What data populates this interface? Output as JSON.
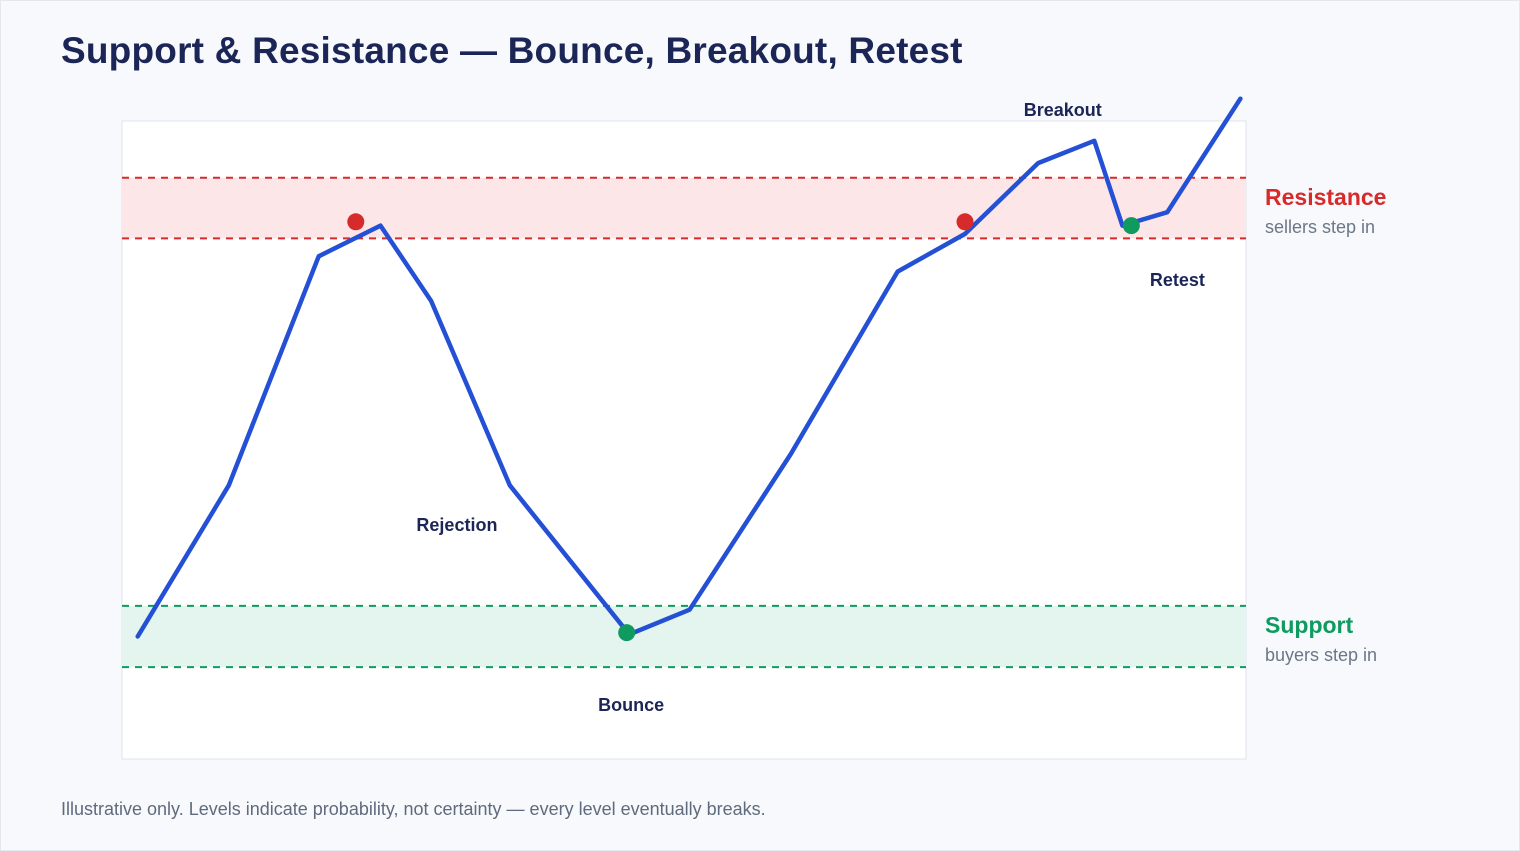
{
  "title": "Support & Resistance — Bounce, Breakout, Retest",
  "footnote": "Illustrative only. Levels indicate probability, not certainty — every level eventually breaks.",
  "colors": {
    "line": "#2350d4",
    "resistance": "#d72b2b",
    "resistance_fill": "#fce6e7",
    "support": "#0f9a5f",
    "support_fill": "#e4f4ee",
    "text_dark": "#1b2657",
    "text_muted": "#6b7788"
  },
  "chart_data": {
    "type": "line",
    "title": "Support & Resistance — Bounce, Breakout, Retest",
    "xlabel": "",
    "ylabel": "",
    "grid": false,
    "xlim": [
      0,
      100
    ],
    "ylim": [
      0,
      100
    ],
    "series": [
      {
        "x": [
          1.4,
          9.5,
          17.5,
          23.0,
          27.5,
          34.5,
          45.0,
          45.5,
          50.5,
          59.5,
          69.0,
          75.0,
          81.5,
          86.5,
          89.0,
          93.0,
          99.5
        ],
        "y": [
          19.2,
          42.9,
          78.8,
          83.6,
          71.8,
          42.9,
          19.8,
          19.8,
          23.4,
          47.8,
          76.4,
          82.3,
          93.4,
          96.9,
          83.6,
          85.7,
          103.5
        ]
      }
    ],
    "zones": [
      {
        "name": "Resistance",
        "subtitle": "sellers step in",
        "low": 81.6,
        "high": 91.1
      },
      {
        "name": "Support",
        "subtitle": "buyers step in",
        "low": 14.4,
        "high": 24.0
      }
    ],
    "markers": [
      {
        "x": 20.8,
        "y": 84.2,
        "kind": "resistance"
      },
      {
        "x": 44.9,
        "y": 19.8,
        "kind": "support"
      },
      {
        "x": 75.0,
        "y": 84.2,
        "kind": "resistance"
      },
      {
        "x": 89.8,
        "y": 83.6,
        "kind": "support"
      }
    ],
    "annotations": [
      {
        "text": "Rejection",
        "x": 29.8,
        "y": 36.5
      },
      {
        "text": "Bounce",
        "x": 45.3,
        "y": 8.3
      },
      {
        "text": "Breakout",
        "x": 83.7,
        "y": 101.5
      },
      {
        "text": "Retest",
        "x": 93.9,
        "y": 74.9
      }
    ]
  }
}
